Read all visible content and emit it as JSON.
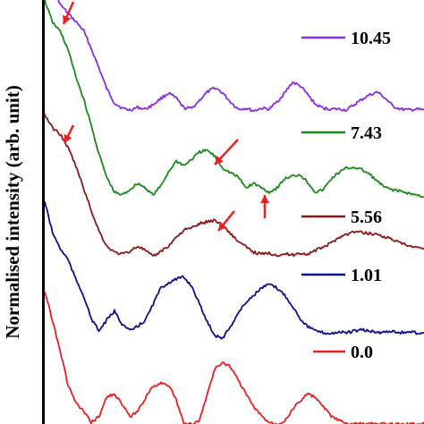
{
  "chart_data": {
    "type": "line",
    "ylabel": "Normalised intensity (arb. unit)",
    "xlabel": "",
    "title": "",
    "grid": false,
    "legend_placement": "right",
    "y_axis_ticks": "none",
    "series": [
      {
        "name": "10.45",
        "color": "#8a2be2",
        "points": [
          [
            0,
            -40
          ],
          [
            5,
            -20
          ],
          [
            10,
            5
          ],
          [
            15,
            15
          ],
          [
            20,
            24
          ],
          [
            25,
            34
          ],
          [
            30,
            54
          ],
          [
            35,
            76
          ],
          [
            40,
            99
          ],
          [
            45,
            115
          ],
          [
            50,
            121
          ],
          [
            55,
            123
          ],
          [
            60,
            120
          ],
          [
            65,
            122
          ],
          [
            70,
            117
          ],
          [
            75,
            110
          ],
          [
            80,
            104
          ],
          [
            85,
            110
          ],
          [
            90,
            121
          ],
          [
            95,
            121
          ],
          [
            100,
            112
          ],
          [
            105,
            103
          ],
          [
            110,
            98
          ],
          [
            115,
            104
          ],
          [
            120,
            114
          ],
          [
            125,
            122
          ],
          [
            130,
            121
          ],
          [
            135,
            124
          ],
          [
            140,
            121
          ],
          [
            145,
            122
          ],
          [
            150,
            114
          ],
          [
            155,
            104
          ],
          [
            160,
            92
          ],
          [
            165,
            96
          ],
          [
            170,
            106
          ],
          [
            175,
            117
          ],
          [
            180,
            121
          ],
          [
            185,
            122
          ],
          [
            190,
            122
          ],
          [
            195,
            123
          ],
          [
            200,
            117
          ],
          [
            205,
            111
          ],
          [
            210,
            106
          ],
          [
            215,
            103
          ],
          [
            220,
            110
          ],
          [
            225,
            119
          ],
          [
            230,
            122
          ],
          [
            235,
            123
          ],
          [
            240,
            122
          ],
          [
            245,
            123
          ]
        ]
      },
      {
        "name": "7.43",
        "color": "#1a8a1a",
        "points": [
          [
            0,
            0
          ],
          [
            5,
            25
          ],
          [
            10,
            35
          ],
          [
            15,
            55
          ],
          [
            20,
            85
          ],
          [
            25,
            110
          ],
          [
            30,
            140
          ],
          [
            35,
            172
          ],
          [
            40,
            198
          ],
          [
            45,
            215
          ],
          [
            50,
            218
          ],
          [
            55,
            212
          ],
          [
            60,
            205
          ],
          [
            65,
            210
          ],
          [
            70,
            218
          ],
          [
            75,
            208
          ],
          [
            80,
            192
          ],
          [
            85,
            180
          ],
          [
            90,
            185
          ],
          [
            95,
            178
          ],
          [
            100,
            170
          ],
          [
            105,
            168
          ],
          [
            110,
            175
          ],
          [
            115,
            188
          ],
          [
            120,
            193
          ],
          [
            125,
            198
          ],
          [
            130,
            210
          ],
          [
            135,
            205
          ],
          [
            140,
            210
          ],
          [
            145,
            215
          ],
          [
            150,
            210
          ],
          [
            155,
            200
          ],
          [
            160,
            197
          ],
          [
            165,
            195
          ],
          [
            170,
            204
          ],
          [
            175,
            215
          ],
          [
            180,
            212
          ],
          [
            185,
            200
          ],
          [
            190,
            193
          ],
          [
            195,
            188
          ],
          [
            200,
            187
          ],
          [
            205,
            190
          ],
          [
            210,
            195
          ],
          [
            215,
            203
          ],
          [
            220,
            210
          ],
          [
            225,
            212
          ],
          [
            230,
            214
          ],
          [
            235,
            216
          ],
          [
            240,
            218
          ],
          [
            245,
            220
          ]
        ]
      },
      {
        "name": "5.56",
        "color": "#8b1a1a",
        "points": [
          [
            0,
            128
          ],
          [
            5,
            143
          ],
          [
            10,
            150
          ],
          [
            15,
            165
          ],
          [
            20,
            185
          ],
          [
            25,
            210
          ],
          [
            30,
            235
          ],
          [
            35,
            258
          ],
          [
            40,
            275
          ],
          [
            45,
            282
          ],
          [
            50,
            284
          ],
          [
            55,
            281
          ],
          [
            60,
            275
          ],
          [
            65,
            280
          ],
          [
            70,
            287
          ],
          [
            75,
            281
          ],
          [
            80,
            275
          ],
          [
            85,
            265
          ],
          [
            90,
            257
          ],
          [
            95,
            255
          ],
          [
            100,
            250
          ],
          [
            105,
            248
          ],
          [
            110,
            246
          ],
          [
            115,
            252
          ],
          [
            120,
            261
          ],
          [
            125,
            270
          ],
          [
            130,
            276
          ],
          [
            135,
            282
          ],
          [
            140,
            284
          ],
          [
            145,
            283
          ],
          [
            150,
            285
          ],
          [
            155,
            284
          ],
          [
            160,
            285
          ],
          [
            165,
            283
          ],
          [
            170,
            284
          ],
          [
            175,
            280
          ],
          [
            180,
            276
          ],
          [
            185,
            272
          ],
          [
            190,
            265
          ],
          [
            195,
            262
          ],
          [
            200,
            259
          ],
          [
            205,
            260
          ],
          [
            210,
            261
          ],
          [
            215,
            262
          ],
          [
            220,
            265
          ],
          [
            225,
            268
          ],
          [
            230,
            272
          ],
          [
            235,
            275
          ],
          [
            240,
            277
          ],
          [
            245,
            279
          ]
        ]
      },
      {
        "name": "1.01",
        "color": "#0f0f8c",
        "points": [
          [
            0,
            225
          ],
          [
            5,
            260
          ],
          [
            10,
            278
          ],
          [
            15,
            290
          ],
          [
            20,
            312
          ],
          [
            25,
            330
          ],
          [
            30,
            356
          ],
          [
            35,
            370
          ],
          [
            40,
            358
          ],
          [
            45,
            348
          ],
          [
            50,
            362
          ],
          [
            55,
            370
          ],
          [
            60,
            365
          ],
          [
            65,
            358
          ],
          [
            70,
            340
          ],
          [
            75,
            322
          ],
          [
            80,
            316
          ],
          [
            85,
            312
          ],
          [
            90,
            310
          ],
          [
            95,
            320
          ],
          [
            100,
            340
          ],
          [
            105,
            360
          ],
          [
            110,
            375
          ],
          [
            115,
            378
          ],
          [
            120,
            365
          ],
          [
            125,
            350
          ],
          [
            130,
            338
          ],
          [
            135,
            330
          ],
          [
            140,
            322
          ],
          [
            145,
            318
          ],
          [
            150,
            322
          ],
          [
            155,
            330
          ],
          [
            160,
            342
          ],
          [
            165,
            356
          ],
          [
            170,
            365
          ],
          [
            175,
            370
          ],
          [
            180,
            372
          ],
          [
            185,
            373
          ],
          [
            190,
            371
          ],
          [
            195,
            372
          ],
          [
            200,
            370
          ],
          [
            205,
            369
          ],
          [
            210,
            370
          ],
          [
            215,
            372
          ],
          [
            220,
            371
          ],
          [
            225,
            370
          ],
          [
            230,
            372
          ],
          [
            235,
            371
          ],
          [
            240,
            372
          ],
          [
            245,
            372
          ]
        ]
      },
      {
        "name": "0.0",
        "color": "#e82020",
        "points": [
          [
            0,
            325
          ],
          [
            5,
            358
          ],
          [
            10,
            392
          ],
          [
            15,
            430
          ],
          [
            20,
            450
          ],
          [
            25,
            460
          ],
          [
            30,
            472
          ],
          [
            35,
            466
          ],
          [
            40,
            444
          ],
          [
            45,
            440
          ],
          [
            50,
            452
          ],
          [
            55,
            466
          ],
          [
            60,
            460
          ],
          [
            65,
            445
          ],
          [
            70,
            432
          ],
          [
            75,
            428
          ],
          [
            80,
            430
          ],
          [
            85,
            448
          ],
          [
            90,
            474
          ],
          [
            95,
            474
          ],
          [
            100,
            470
          ],
          [
            105,
            440
          ],
          [
            110,
            412
          ],
          [
            115,
            405
          ],
          [
            120,
            410
          ],
          [
            125,
            425
          ],
          [
            130,
            440
          ],
          [
            135,
            455
          ],
          [
            140,
            465
          ],
          [
            145,
            472
          ],
          [
            150,
            474
          ],
          [
            155,
            470
          ],
          [
            160,
            458
          ],
          [
            165,
            448
          ],
          [
            170,
            440
          ],
          [
            175,
            445
          ],
          [
            180,
            455
          ],
          [
            185,
            465
          ],
          [
            190,
            470
          ],
          [
            195,
            474
          ],
          [
            200,
            474
          ],
          [
            205,
            474
          ],
          [
            210,
            474
          ],
          [
            215,
            474
          ],
          [
            220,
            474
          ],
          [
            225,
            474
          ],
          [
            230,
            474
          ],
          [
            235,
            474
          ],
          [
            240,
            474
          ],
          [
            245,
            474
          ]
        ]
      }
    ],
    "annotations": [
      {
        "type": "arrow",
        "color": "#e82020",
        "direction": "down-left",
        "at_series": "10.45"
      },
      {
        "type": "arrow",
        "color": "#e82020",
        "direction": "down-left",
        "at_series": "5.56"
      },
      {
        "type": "arrow",
        "color": "#e82020",
        "direction": "down-left",
        "at_series": "7.43"
      },
      {
        "type": "arrow",
        "color": "#e82020",
        "direction": "up",
        "at_series": "7.43"
      },
      {
        "type": "arrow",
        "color": "#e82020",
        "direction": "down-left",
        "at_series": "5.56"
      }
    ]
  }
}
